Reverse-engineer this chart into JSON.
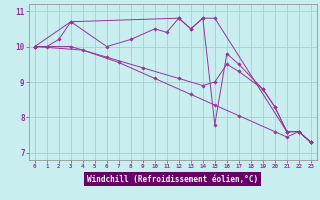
{
  "bg_color": "#c8eef0",
  "line_color": "#993399",
  "axis_label_bg": "#660066",
  "xlabel": "Windchill (Refroidissement éolien,°C)",
  "xlim_min": -0.5,
  "xlim_max": 23.5,
  "ylim_min": 6.8,
  "ylim_max": 11.2,
  "yticks": [
    7,
    8,
    9,
    10,
    11
  ],
  "xticks": [
    0,
    1,
    2,
    3,
    4,
    5,
    6,
    7,
    8,
    9,
    10,
    11,
    12,
    13,
    14,
    15,
    16,
    17,
    18,
    19,
    20,
    21,
    22,
    23
  ],
  "series": [
    {
      "x": [
        0,
        1,
        2,
        3,
        6,
        8,
        10,
        11,
        12,
        13,
        14,
        15,
        21,
        22,
        23
      ],
      "y": [
        10.0,
        10.0,
        10.2,
        10.7,
        10.0,
        10.2,
        10.5,
        10.4,
        10.8,
        10.5,
        10.8,
        10.8,
        7.6,
        7.6,
        7.3
      ]
    },
    {
      "x": [
        0,
        3,
        12,
        13,
        14,
        15,
        16,
        17,
        19,
        20,
        21,
        22,
        23
      ],
      "y": [
        10.0,
        10.7,
        10.8,
        10.5,
        10.8,
        7.8,
        9.8,
        9.5,
        8.8,
        8.3,
        7.6,
        7.6,
        7.3
      ]
    },
    {
      "x": [
        0,
        3,
        6,
        9,
        12,
        14,
        15,
        16,
        17,
        19,
        20,
        21,
        22,
        23
      ],
      "y": [
        10.0,
        10.0,
        9.7,
        9.4,
        9.1,
        8.9,
        9.0,
        9.5,
        9.3,
        8.8,
        8.3,
        7.6,
        7.6,
        7.3
      ]
    },
    {
      "x": [
        0,
        4,
        7,
        10,
        13,
        15,
        17,
        20,
        21,
        22,
        23
      ],
      "y": [
        10.0,
        9.9,
        9.55,
        9.1,
        8.65,
        8.35,
        8.05,
        7.6,
        7.45,
        7.6,
        7.3
      ]
    }
  ]
}
